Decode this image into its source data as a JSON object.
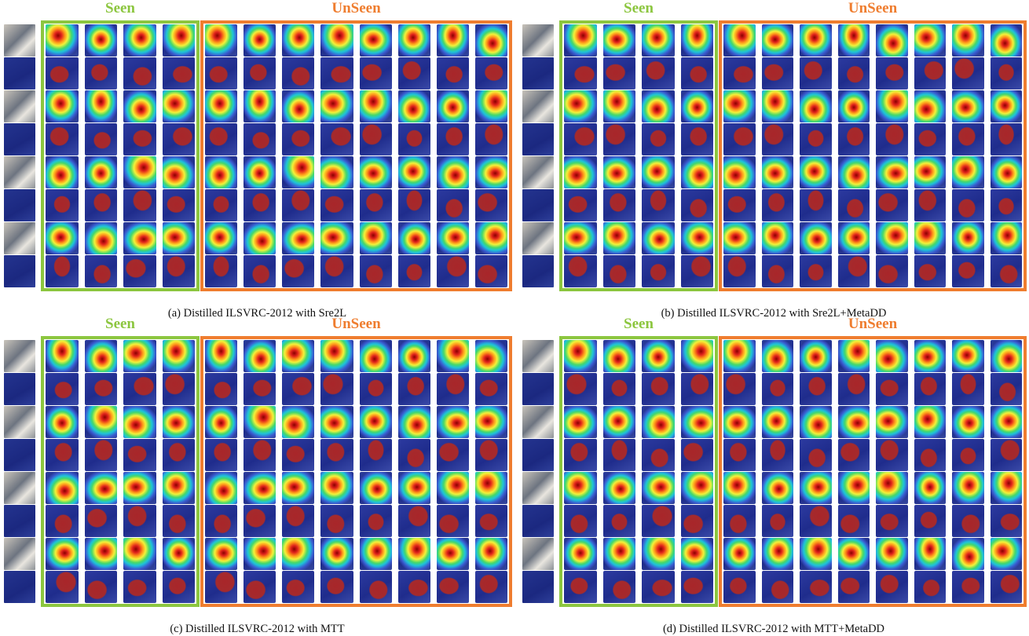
{
  "panels": [
    {
      "id": "a",
      "seen_label": "Seen",
      "unseen_label": "UnSeen",
      "caption": "(a) Distilled ILSVRC-2012 with Sre2L"
    },
    {
      "id": "b",
      "seen_label": "Seen",
      "unseen_label": "UnSeen",
      "caption": "(b) Distilled ILSVRC-2012 with Sre2L+MetaDD"
    },
    {
      "id": "c",
      "seen_label": "Seen",
      "unseen_label": "UnSeen",
      "caption": "(c) Distilled ILSVRC-2012 with MTT"
    },
    {
      "id": "d",
      "seen_label": "Seen",
      "unseen_label": "UnSeen",
      "caption": "(d) Distilled ILSVRC-2012 with MTT+MetaDD"
    }
  ],
  "grid": {
    "rows": 8,
    "seen_columns": 4,
    "unseen_columns": 8
  },
  "colors": {
    "seen": "#8cc63f",
    "unseen": "#ef7d2f"
  }
}
